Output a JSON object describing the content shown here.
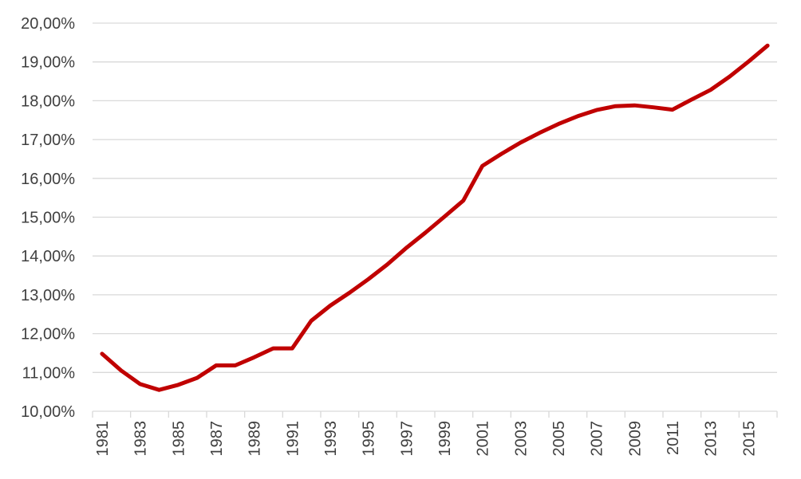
{
  "chart_data": {
    "type": "line",
    "title": "",
    "xlabel": "",
    "ylabel": "",
    "ylim": [
      10,
      20
    ],
    "grid": true,
    "legend": "none",
    "y_ticks": [
      {
        "value": 10,
        "label": "10,00%"
      },
      {
        "value": 11,
        "label": "11,00%"
      },
      {
        "value": 12,
        "label": "12,00%"
      },
      {
        "value": 13,
        "label": "13,00%"
      },
      {
        "value": 14,
        "label": "14,00%"
      },
      {
        "value": 15,
        "label": "15,00%"
      },
      {
        "value": 16,
        "label": "16,00%"
      },
      {
        "value": 17,
        "label": "17,00%"
      },
      {
        "value": 18,
        "label": "18,00%"
      },
      {
        "value": 19,
        "label": "19,00%"
      },
      {
        "value": 20,
        "label": "20,00%"
      }
    ],
    "x_tick_labels": [
      "1981",
      "1983",
      "1985",
      "1987",
      "1989",
      "1991",
      "1993",
      "1995",
      "1997",
      "1999",
      "2001",
      "2003",
      "2005",
      "2007",
      "2009",
      "2011",
      "2013",
      "2015"
    ],
    "x": [
      1981,
      1982,
      1983,
      1984,
      1985,
      1986,
      1987,
      1988,
      1989,
      1990,
      1991,
      1992,
      1993,
      1994,
      1995,
      1996,
      1997,
      1998,
      1999,
      2000,
      2001,
      2002,
      2003,
      2004,
      2005,
      2006,
      2007,
      2008,
      2009,
      2010,
      2011,
      2012,
      2013,
      2014,
      2015,
      2016
    ],
    "series": [
      {
        "color": "#c00000",
        "values": [
          11.48,
          11.05,
          10.7,
          10.55,
          10.68,
          10.86,
          11.18,
          11.18,
          11.39,
          11.62,
          11.62,
          12.33,
          12.72,
          13.05,
          13.4,
          13.78,
          14.21,
          14.6,
          15.01,
          15.43,
          16.32,
          16.63,
          16.92,
          17.17,
          17.4,
          17.6,
          17.76,
          17.86,
          17.88,
          17.83,
          17.77,
          18.03,
          18.28,
          18.62,
          19.01,
          19.42
        ]
      }
    ]
  }
}
